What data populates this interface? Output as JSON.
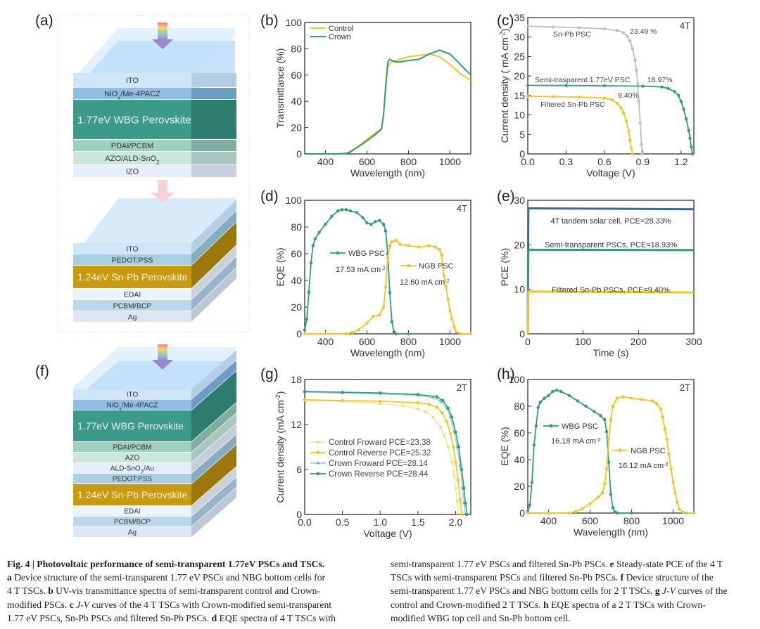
{
  "panels": {
    "a": "(a)",
    "b": "(b)",
    "c": "(c)",
    "d": "(d)",
    "e": "(e)",
    "f": "(f)",
    "g": "(g)",
    "h": "(h)"
  },
  "structure_a": {
    "top_cell_layers": [
      "ITO",
      "NiOx/Me-4PACZ",
      "1.77eV WBG Perovskite",
      "PDAI/PCBM",
      "AZO/ALD-SnO2",
      "IZO"
    ],
    "bottom_cell_layers": [
      "ITO",
      "PEDOT:PSS",
      "1.24eV Sn-Pb Perovskite",
      "EDAI",
      "PCBM/BCP",
      "Ag"
    ]
  },
  "structure_f": {
    "layers": [
      "ITO",
      "NiOx/Me-4PACZ",
      "1.77eV WBG Perovskite",
      "PDAI/PCBM",
      "AZO",
      "ALD-SnO2/Au",
      "PEDOT:PSS",
      "1.24eV Sn-Pb Perovskite",
      "EDAI",
      "PCBM/BCP",
      "Ag"
    ]
  },
  "colors": {
    "control": "#f5c518",
    "crown": "#2e9c84",
    "snpb": "#c0c0c0",
    "tandem": "#3a6a96",
    "wbg_layer": "#3a9a88",
    "snpb_layer": "#c99a0a",
    "ito_layer": "#cfe6f7"
  },
  "chart_data": [
    {
      "id": "b",
      "type": "line",
      "title": "",
      "xlabel": "Wavelength (nm)",
      "ylabel": "Transmittance (%)",
      "xlim": [
        300,
        1100
      ],
      "ylim": [
        0,
        100
      ],
      "xticks": [
        400,
        600,
        800,
        1000
      ],
      "yticks": [
        0,
        20,
        40,
        60,
        80,
        100
      ],
      "legend": "top-left",
      "series": [
        {
          "name": "Control",
          "x": [
            300,
            450,
            500,
            520,
            550,
            600,
            650,
            670,
            680,
            690,
            700,
            710,
            720,
            740,
            760,
            800,
            850,
            900,
            950,
            1000,
            1050,
            1100
          ],
          "y": [
            0,
            0,
            0.5,
            2,
            5,
            11,
            17,
            19,
            30,
            50,
            66,
            69,
            70,
            71,
            72,
            74,
            75,
            76,
            74,
            68,
            61,
            56
          ]
        },
        {
          "name": "Crown",
          "x": [
            300,
            450,
            500,
            520,
            550,
            600,
            650,
            670,
            680,
            690,
            700,
            710,
            720,
            740,
            760,
            800,
            850,
            900,
            950,
            1000,
            1050,
            1100
          ],
          "y": [
            0,
            0,
            0.3,
            1.5,
            4.5,
            10,
            16,
            19,
            30,
            52,
            70,
            72,
            71,
            70,
            70,
            71,
            72,
            76,
            79,
            76,
            68,
            60
          ]
        }
      ]
    },
    {
      "id": "c",
      "type": "line",
      "xlabel": "Voltage (V)",
      "ylabel": "Current density ( mA cm-2)",
      "xlim": [
        0,
        1.3
      ],
      "ylim": [
        0,
        35
      ],
      "xticks": [
        0.0,
        0.3,
        0.6,
        0.9,
        1.2
      ],
      "yticks": [
        0,
        5,
        10,
        15,
        20,
        25,
        30,
        35
      ],
      "corner_label": "4T",
      "annotations": [
        "Sn-Pb PSC",
        "23.49 %",
        "Semi-trasparent 1.77eV PSC",
        "18.97%",
        "9.40%",
        "Filtered Sn-Pb PSC"
      ],
      "series": [
        {
          "name": "Sn-Pb PSC",
          "x": [
            0,
            0.2,
            0.4,
            0.6,
            0.7,
            0.75,
            0.78,
            0.8,
            0.82,
            0.84,
            0.85,
            0.86,
            0.87,
            0.88,
            0.89,
            0.895
          ],
          "y": [
            32.8,
            32.6,
            32.4,
            32.1,
            31.7,
            31.1,
            30.2,
            29,
            27,
            24,
            21.5,
            18,
            13.5,
            8,
            2.5,
            0
          ]
        },
        {
          "name": "Semi-trasparent 1.77eV PSC",
          "x": [
            0,
            0.3,
            0.6,
            0.9,
            1.05,
            1.1,
            1.15,
            1.18,
            1.2,
            1.22,
            1.24,
            1.26,
            1.27,
            1.28,
            1.29
          ],
          "y": [
            17.6,
            17.55,
            17.5,
            17.4,
            17.2,
            16.8,
            16,
            15,
            13.5,
            11.5,
            9,
            6,
            4,
            1.8,
            0
          ]
        },
        {
          "name": "Filtered Sn-Pb PSC",
          "x": [
            0,
            0.2,
            0.4,
            0.6,
            0.66,
            0.7,
            0.73,
            0.75,
            0.77,
            0.79,
            0.8,
            0.81,
            0.82
          ],
          "y": [
            14.8,
            14.7,
            14.6,
            14.3,
            13.9,
            13,
            11.8,
            10.5,
            8.5,
            5.8,
            3.5,
            1.5,
            0
          ]
        }
      ]
    },
    {
      "id": "d",
      "type": "line",
      "xlabel": "Wavelength (nm)",
      "ylabel": "EQE (%)",
      "xlim": [
        300,
        1100
      ],
      "ylim": [
        0,
        100
      ],
      "xticks": [
        400,
        600,
        800,
        1000
      ],
      "yticks": [
        0,
        20,
        40,
        60,
        80,
        100
      ],
      "corner_label": "4T",
      "series": [
        {
          "name": "WBG PSC",
          "integrated": "17.53 mA cm-2",
          "x": [
            300,
            310,
            320,
            330,
            340,
            350,
            370,
            400,
            430,
            460,
            480,
            500,
            520,
            550,
            580,
            600,
            620,
            640,
            660,
            680,
            690,
            700,
            710,
            720,
            730,
            740,
            800
          ],
          "y": [
            3,
            11,
            31,
            53,
            66,
            71,
            76,
            82,
            88,
            92,
            93,
            93,
            92,
            91,
            87,
            83,
            82,
            84,
            85,
            82,
            77,
            60,
            31,
            9,
            1.5,
            0,
            0
          ]
        },
        {
          "name": "NGB PSC",
          "integrated": "12.60 mA cm-2",
          "x": [
            300,
            400,
            500,
            530,
            560,
            600,
            630,
            660,
            680,
            690,
            700,
            710,
            720,
            740,
            760,
            800,
            850,
            900,
            930,
            950,
            960,
            970,
            980,
            990,
            1000,
            1010,
            1020,
            1030,
            1050,
            1100
          ],
          "y": [
            0,
            0,
            0,
            1,
            3,
            8,
            13,
            14,
            20,
            35,
            57,
            66,
            69,
            70,
            67,
            66,
            65,
            66,
            65,
            63,
            59,
            44,
            36,
            26,
            17,
            11,
            5,
            1.5,
            0,
            0
          ]
        }
      ]
    },
    {
      "id": "e",
      "type": "line",
      "xlabel": "Time (s)",
      "ylabel": "PCE (%)",
      "xlim": [
        0,
        300
      ],
      "ylim": [
        0,
        30
      ],
      "xticks": [
        0,
        100,
        200,
        300
      ],
      "yticks": [
        0,
        10,
        20,
        30
      ],
      "series": [
        {
          "name": "4T tandem solar cell, PCE=28.33%",
          "x": [
            0,
            1,
            300
          ],
          "y": [
            0,
            28.2,
            28.0
          ]
        },
        {
          "name": "Semi-transparent PSCs, PCE=18.93%",
          "x": [
            0,
            1,
            300
          ],
          "y": [
            0,
            18.9,
            18.8
          ]
        },
        {
          "name": "Filtered Sn-Pb PSCs, PCE=9.40%",
          "x": [
            0,
            1,
            300
          ],
          "y": [
            0,
            9.5,
            9.3
          ]
        }
      ]
    },
    {
      "id": "g",
      "type": "line",
      "xlabel": "Voltage (V)",
      "ylabel": "Current density (mA cm-2)",
      "xlim": [
        0,
        2.2
      ],
      "ylim": [
        0,
        18
      ],
      "xticks": [
        0.0,
        0.5,
        1.0,
        1.5,
        2.0
      ],
      "yticks": [
        0,
        6,
        12,
        18
      ],
      "corner_label": "2T",
      "series": [
        {
          "name": "Control Froward  PCE=23.38",
          "x": [
            0,
            0.5,
            1.0,
            1.3,
            1.5,
            1.6,
            1.7,
            1.8,
            1.85,
            1.9,
            1.95,
            1.98,
            2.0,
            2.02,
            2.04
          ],
          "y": [
            15.2,
            15.1,
            14.8,
            14.5,
            14.1,
            13.7,
            13.0,
            11.6,
            10.5,
            9,
            7,
            5.2,
            3.5,
            1.8,
            0
          ]
        },
        {
          "name": "Control Reverse  PCE=25.32",
          "x": [
            0,
            0.5,
            1.0,
            1.5,
            1.65,
            1.75,
            1.82,
            1.88,
            1.93,
            1.97,
            2.0,
            2.03,
            2.06,
            2.08
          ],
          "y": [
            15.3,
            15.2,
            15.1,
            14.9,
            14.7,
            14.3,
            13.6,
            12.4,
            10.8,
            9,
            7,
            4.6,
            2,
            0
          ]
        },
        {
          "name": "Crown  Froward  PCE=28.14",
          "x": [
            0,
            0.5,
            1.0,
            1.5,
            1.7,
            1.8,
            1.88,
            1.93,
            1.98,
            2.02,
            2.06,
            2.09,
            2.11,
            2.13
          ],
          "y": [
            16.3,
            16.2,
            16.1,
            15.9,
            15.6,
            15.1,
            14.2,
            13,
            11,
            9,
            6.5,
            3.5,
            1.5,
            0
          ]
        },
        {
          "name": "Crown  Reverse  PCE=28.44",
          "x": [
            0,
            0.5,
            1.0,
            1.5,
            1.75,
            1.83,
            1.9,
            1.95,
            2.0,
            2.04,
            2.08,
            2.11,
            2.13,
            2.15
          ],
          "y": [
            16.4,
            16.3,
            16.2,
            16.0,
            15.7,
            15.2,
            14.2,
            13,
            11,
            9,
            6,
            3.5,
            1.5,
            0
          ]
        }
      ]
    },
    {
      "id": "h",
      "type": "line",
      "xlabel": "Wavelength (nm)",
      "ylabel": "EQE (%)",
      "xlim": [
        300,
        1100
      ],
      "ylim": [
        0,
        100
      ],
      "xticks": [
        400,
        600,
        800,
        1000
      ],
      "yticks": [
        0,
        20,
        40,
        60,
        80,
        100
      ],
      "corner_label": "2T",
      "series": [
        {
          "name": "WBG PSC",
          "integrated": "16.18 mA cm-2",
          "x": [
            300,
            310,
            320,
            330,
            340,
            350,
            360,
            380,
            400,
            420,
            440,
            460,
            500,
            540,
            580,
            620,
            650,
            670,
            680,
            690,
            700,
            710,
            720,
            730,
            800
          ],
          "y": [
            1,
            6,
            23,
            51,
            65,
            79,
            83,
            86,
            88,
            91,
            92,
            91,
            88,
            84,
            80,
            76,
            73,
            70,
            61,
            38,
            14,
            4,
            0.8,
            0,
            0
          ]
        },
        {
          "name": "NGB PSC",
          "integrated": "16.12 mA cm-2",
          "x": [
            300,
            400,
            500,
            530,
            560,
            600,
            640,
            660,
            670,
            680,
            690,
            700,
            710,
            730,
            760,
            800,
            850,
            900,
            920,
            940,
            950,
            960,
            970,
            980,
            990,
            1000,
            1010,
            1020,
            1030,
            1050,
            1100
          ],
          "y": [
            0,
            0,
            0,
            1,
            3,
            7,
            12,
            15,
            22,
            33,
            55,
            70,
            80,
            86,
            87,
            86,
            85,
            84,
            82,
            78,
            72,
            63,
            55,
            44,
            33,
            23,
            15,
            8,
            3,
            0.5,
            0
          ]
        }
      ]
    }
  ],
  "caption": {
    "title": "Fig. 4 | Photovoltaic performance of semi-transparent 1.77eV PSCs and TSCs.",
    "left_lines": [
      [
        [
          "b",
          "a"
        ],
        [
          "t",
          " Device structure of the semi-transparent 1.77 eV PSCs and NBG bottom cells for"
        ]
      ],
      [
        [
          "t",
          "4 T TSCs. "
        ],
        [
          "b",
          "b"
        ],
        [
          "t",
          " UV-vis transmittance spectra of semi-transparent control and Crown-"
        ]
      ],
      [
        [
          "t",
          "modified PSCs. "
        ],
        [
          "b",
          "c"
        ],
        [
          "i",
          " J-V"
        ],
        [
          "t",
          " curves of the 4 T TSCs with Crown-modified semi-transparent"
        ]
      ],
      [
        [
          "t",
          "1.77 eV PSCs, Sn-Pb PSCs and filtered Sn-Pb PSCs. "
        ],
        [
          "b",
          "d"
        ],
        [
          "t",
          " EQE spectra of 4 T TSCs with"
        ]
      ]
    ],
    "right_lines": [
      [
        [
          "t",
          "semi-transparent 1.77 eV PSCs and filtered Sn-Pb PSCs. "
        ],
        [
          "b",
          "e"
        ],
        [
          "t",
          " Steady-state PCE of the 4 T"
        ]
      ],
      [
        [
          "t",
          "TSCs with semi-transparent PSCs and filtered Sn-Pb PSCs. "
        ],
        [
          "b",
          "f"
        ],
        [
          "t",
          " Device structure of the"
        ]
      ],
      [
        [
          "t",
          "semi-transparent 1.77 eV PSCs and NBG bottom cells for 2 T TSCs. "
        ],
        [
          "b",
          "g"
        ],
        [
          "i",
          " J-V"
        ],
        [
          "t",
          " curves of the"
        ]
      ],
      [
        [
          "t",
          "control and Crown-modified 2 T TSCs. "
        ],
        [
          "b",
          "h"
        ],
        [
          "t",
          " EQE spectra of a 2 T TSCs with Crown-"
        ]
      ],
      [
        [
          "t",
          "modified WBG top cell and Sn-Pb bottom cell."
        ]
      ]
    ]
  }
}
